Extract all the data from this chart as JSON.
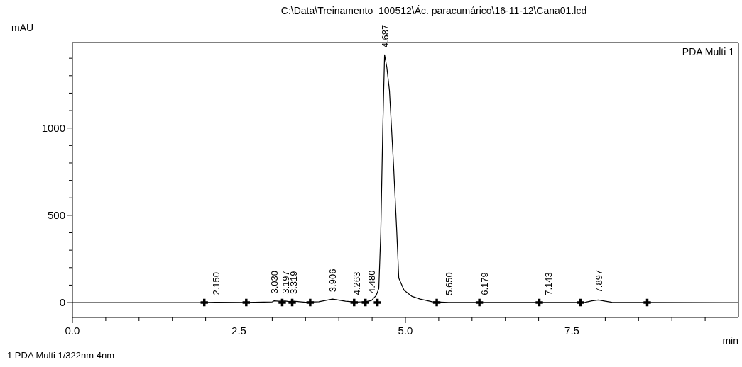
{
  "chart_data": {
    "type": "line",
    "title": "C:\\Data\\Treinamento_100512\\Ác. paracumárico\\16-11-12\\Cana01.lcd",
    "xlabel": "min",
    "ylabel": "mAU",
    "xlim": [
      0,
      10
    ],
    "ylim": [
      -85,
      1490
    ],
    "xticks": [
      {
        "value": 0,
        "label": "0.0"
      },
      {
        "value": 0.5,
        "label": null
      },
      {
        "value": 1,
        "label": null
      },
      {
        "value": 1.5,
        "label": null
      },
      {
        "value": 2,
        "label": null
      },
      {
        "value": 2.5,
        "label": "2.5"
      },
      {
        "value": 3,
        "label": null
      },
      {
        "value": 3.5,
        "label": null
      },
      {
        "value": 4,
        "label": null
      },
      {
        "value": 4.5,
        "label": null
      },
      {
        "value": 5,
        "label": "5.0"
      },
      {
        "value": 5.5,
        "label": null
      },
      {
        "value": 6,
        "label": null
      },
      {
        "value": 6.5,
        "label": null
      },
      {
        "value": 7,
        "label": null
      },
      {
        "value": 7.5,
        "label": "7.5"
      },
      {
        "value": 8,
        "label": null
      },
      {
        "value": 8.5,
        "label": null
      },
      {
        "value": 9,
        "label": null
      },
      {
        "value": 9.5,
        "label": null
      }
    ],
    "yticks": [
      0,
      {
        "value": 100,
        "label": null
      },
      {
        "value": 200,
        "label": null
      },
      {
        "value": 300,
        "label": null
      },
      {
        "value": 400,
        "label": null
      },
      500,
      {
        "value": 600,
        "label": null
      },
      {
        "value": 700,
        "label": null
      },
      {
        "value": 800,
        "label": null
      },
      {
        "value": 900,
        "label": null
      },
      1000,
      {
        "value": 1100,
        "label": null
      },
      {
        "value": 1200,
        "label": null
      },
      {
        "value": 1300,
        "label": null
      },
      {
        "value": 1400,
        "label": null
      }
    ],
    "legend": "top right",
    "grid": false,
    "series": [
      {
        "name": "PDA Multi 1",
        "color": "#000000",
        "marker": "none",
        "x": [
          0,
          1.9,
          2.15,
          2.6,
          3.0,
          3.03,
          3.1,
          3.197,
          3.25,
          3.319,
          3.5,
          3.7,
          3.906,
          4.1,
          4.263,
          4.4,
          4.49,
          4.56,
          4.6,
          4.63,
          4.66,
          4.687,
          4.72,
          4.76,
          4.82,
          4.87,
          4.9,
          4.98,
          5.1,
          5.22,
          5.4,
          5.65,
          6.179,
          7.143,
          7.7,
          7.8,
          7.897,
          8.0,
          8.1,
          8.5,
          10
        ],
        "values": [
          0,
          0,
          2,
          1,
          4,
          10,
          8,
          9,
          6,
          8,
          2,
          5,
          20,
          8,
          3,
          5,
          12,
          40,
          80,
          400,
          1000,
          1420,
          1350,
          1215,
          800,
          405,
          140,
          70,
          35,
          20,
          5,
          1,
          1,
          1,
          2,
          10,
          15,
          8,
          2,
          1,
          0
        ]
      },
      {
        "type": "scatter",
        "color": "#000000",
        "marker": "cross",
        "x": [
          1.98,
          2.61,
          3.15,
          3.3,
          3.57,
          4.23,
          4.4,
          4.58,
          5.47,
          6.11,
          7.01,
          7.63,
          8.63
        ],
        "values": [
          0,
          0,
          0,
          0,
          0,
          0,
          0,
          0,
          0,
          0,
          0,
          0,
          0
        ]
      }
    ],
    "annotations": [
      {
        "text": "2.150",
        "x": 2.15,
        "y": 2
      },
      {
        "text": "3.030",
        "x": 3.03,
        "y": 10
      },
      {
        "text": "3.197",
        "x": 3.197,
        "y": 9
      },
      {
        "text": "3.319",
        "x": 3.319,
        "y": 8
      },
      {
        "text": "3.906",
        "x": 3.906,
        "y": 20
      },
      {
        "text": "4.263",
        "x": 4.263,
        "y": 3
      },
      {
        "text": "4.480",
        "x": 4.49,
        "y": 12
      },
      {
        "text": "4.687",
        "x": 4.687,
        "y": 1420
      },
      {
        "text": "5.650",
        "x": 5.65,
        "y": 1
      },
      {
        "text": "6.179",
        "x": 6.179,
        "y": 1
      },
      {
        "text": "7.143",
        "x": 7.143,
        "y": 1
      },
      {
        "text": "7.897",
        "x": 7.897,
        "y": 15
      },
      "1   PDA Multi 1/322nm 4nm"
    ]
  }
}
